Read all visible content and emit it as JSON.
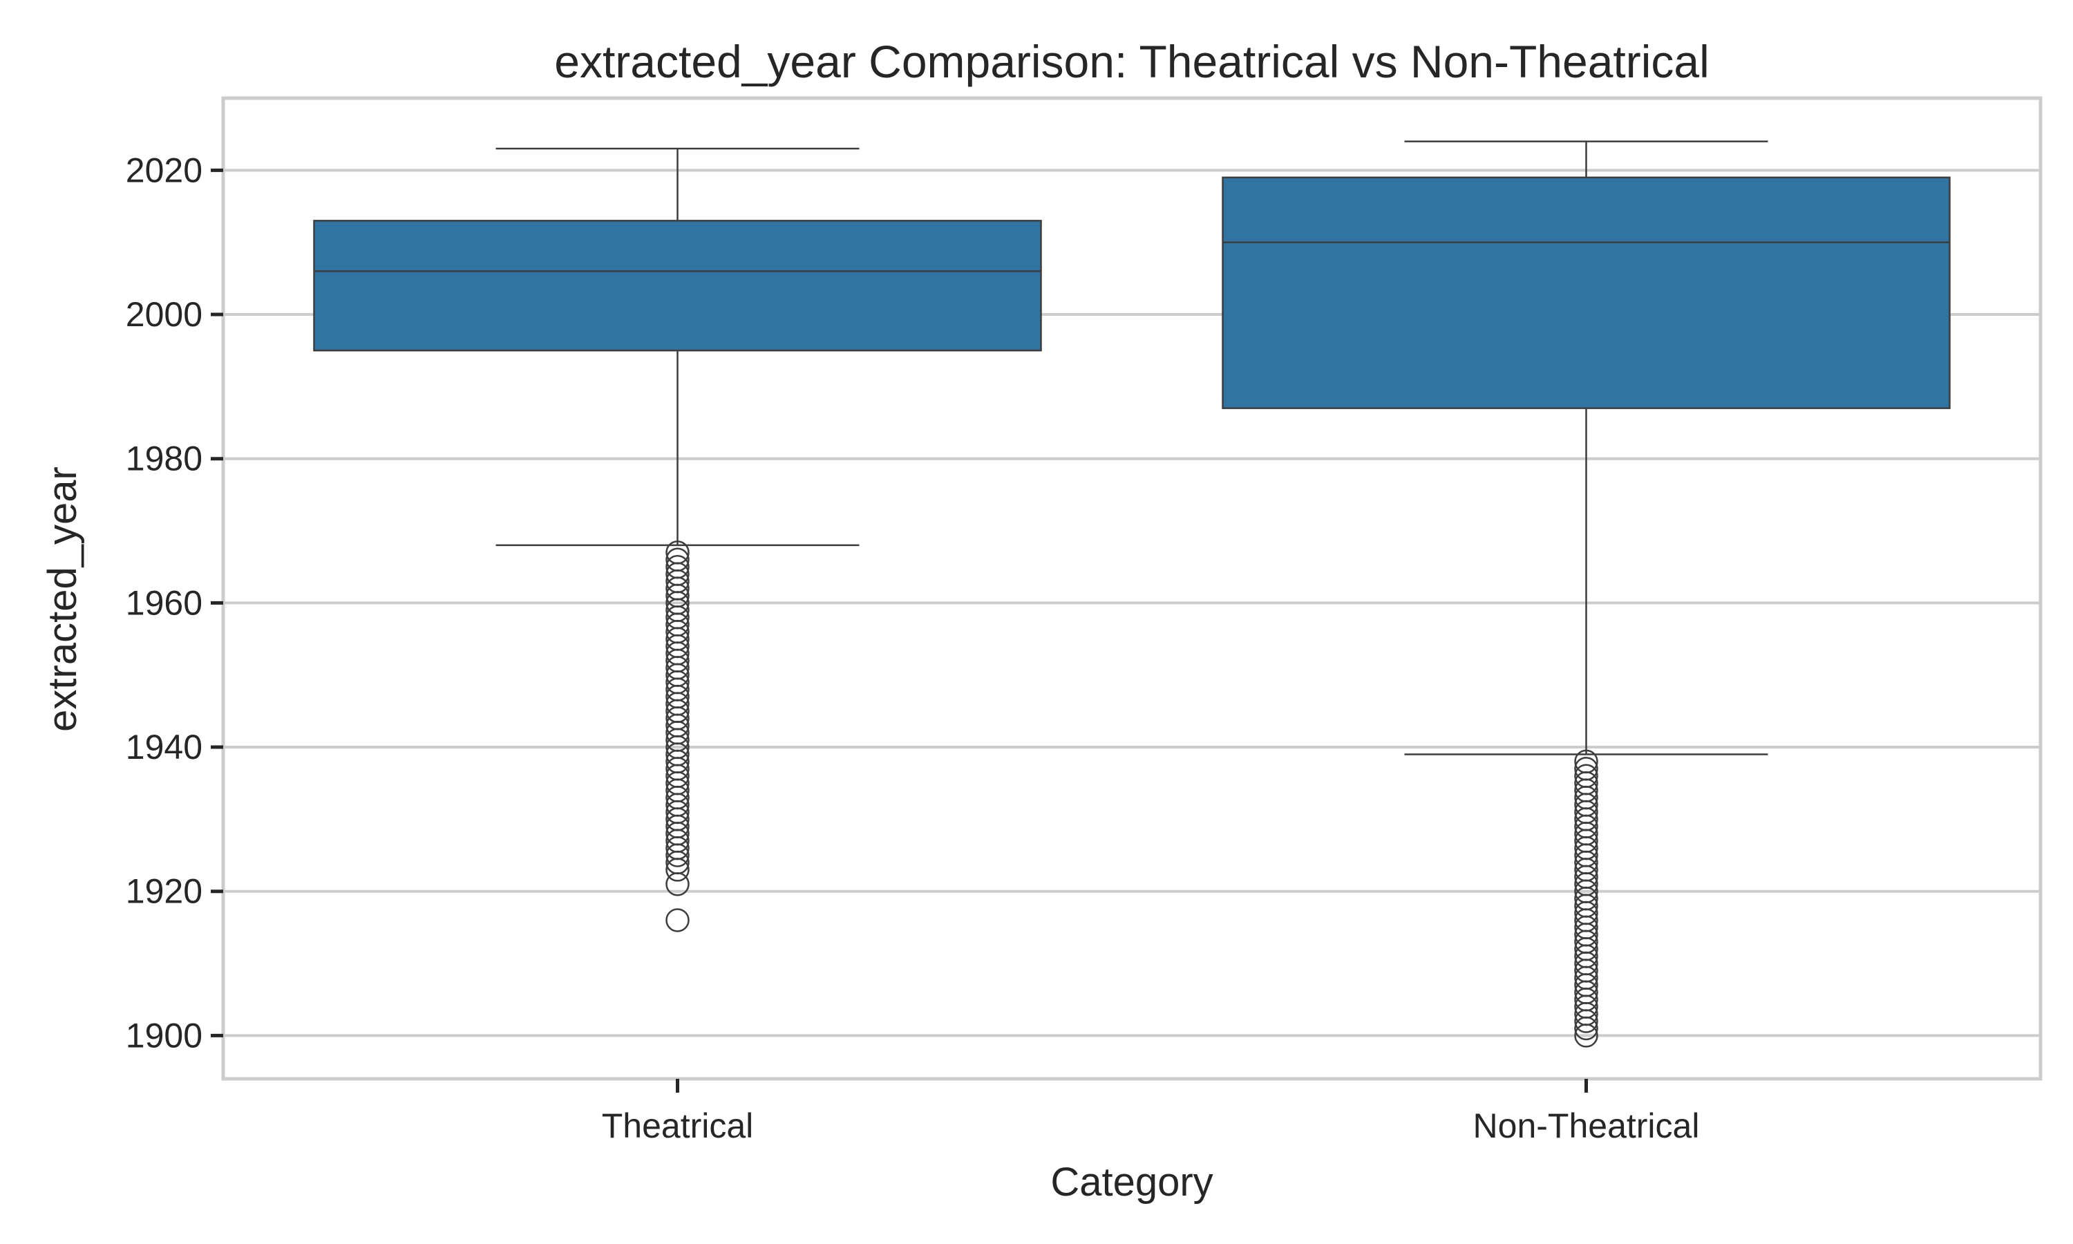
{
  "chart_data": {
    "type": "box",
    "title": "extracted_year Comparison: Theatrical vs Non-Theatrical",
    "xlabel": "Category",
    "ylabel": "extracted_year",
    "categories": [
      "Theatrical",
      "Non-Theatrical"
    ],
    "ylim": [
      1894,
      2030
    ],
    "yticks": [
      1900,
      1920,
      1940,
      1960,
      1980,
      2000,
      2020
    ],
    "grid": true,
    "box_color": "#3274a1",
    "line_color": "#3d3d3d",
    "grid_color": "#cccccc",
    "series": [
      {
        "category": "Theatrical",
        "whisker_low": 1968,
        "q1": 1995,
        "median": 2006,
        "q3": 2013,
        "whisker_high": 2023,
        "outliers": [
          1916,
          1921,
          1923,
          1924,
          1925,
          1926,
          1927,
          1928,
          1929,
          1930,
          1931,
          1932,
          1933,
          1934,
          1935,
          1936,
          1937,
          1938,
          1939,
          1940,
          1941,
          1942,
          1943,
          1944,
          1945,
          1946,
          1947,
          1948,
          1949,
          1950,
          1951,
          1952,
          1953,
          1954,
          1955,
          1956,
          1957,
          1958,
          1959,
          1960,
          1961,
          1962,
          1963,
          1964,
          1965,
          1966,
          1967
        ]
      },
      {
        "category": "Non-Theatrical",
        "whisker_low": 1939,
        "q1": 1987,
        "median": 2010,
        "q3": 2019,
        "whisker_high": 2024,
        "outliers": [
          1900,
          1901,
          1902,
          1903,
          1904,
          1905,
          1906,
          1907,
          1908,
          1909,
          1910,
          1911,
          1912,
          1913,
          1914,
          1915,
          1916,
          1917,
          1918,
          1919,
          1920,
          1921,
          1922,
          1923,
          1924,
          1925,
          1926,
          1927,
          1928,
          1929,
          1930,
          1931,
          1932,
          1933,
          1934,
          1935,
          1936,
          1937,
          1938
        ]
      }
    ]
  }
}
